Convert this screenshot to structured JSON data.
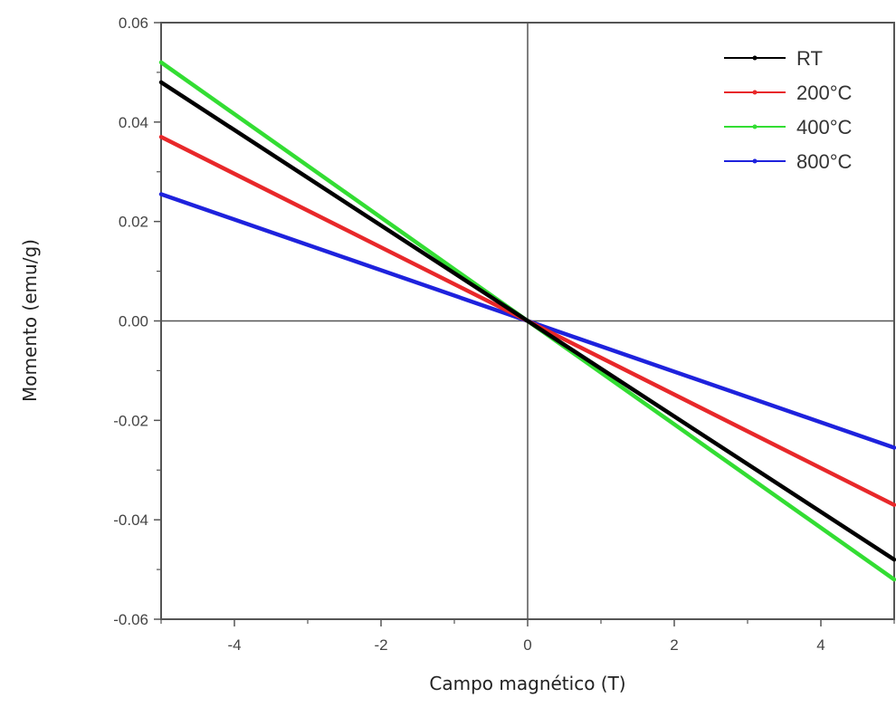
{
  "chart_data": {
    "type": "line",
    "title": "",
    "xlabel": "Campo magnético (T)",
    "ylabel": "Momento (emu/g)",
    "xlim": [
      -5,
      5
    ],
    "ylim": [
      -0.06,
      0.06
    ],
    "xticks": [
      -4,
      -2,
      0,
      2,
      4
    ],
    "xtick_labels": [
      "-4",
      "-2",
      "0",
      "2",
      "4"
    ],
    "yticks": [
      -0.06,
      -0.04,
      -0.02,
      0.0,
      0.02,
      0.04,
      0.06
    ],
    "ytick_labels": [
      "-0.06",
      "-0.04",
      "-0.02",
      "0.00",
      "0.02",
      "0.04",
      "0.06"
    ],
    "grid": false,
    "legend_position": "top-right",
    "series": [
      {
        "name": "RT",
        "color": "#000000",
        "x": [
          -5,
          0,
          5
        ],
        "y": [
          0.048,
          0.0,
          -0.048
        ]
      },
      {
        "name": "200°C",
        "color": "#e8282a",
        "x": [
          -5,
          0,
          5
        ],
        "y": [
          0.037,
          0.0,
          -0.037
        ]
      },
      {
        "name": "400°C",
        "color": "#33dd33",
        "x": [
          -5,
          0,
          5
        ],
        "y": [
          0.052,
          0.0,
          -0.052
        ]
      },
      {
        "name": "800°C",
        "color": "#1e22dd",
        "x": [
          -5,
          0,
          5
        ],
        "y": [
          0.0255,
          0.0,
          -0.0255
        ]
      }
    ]
  }
}
